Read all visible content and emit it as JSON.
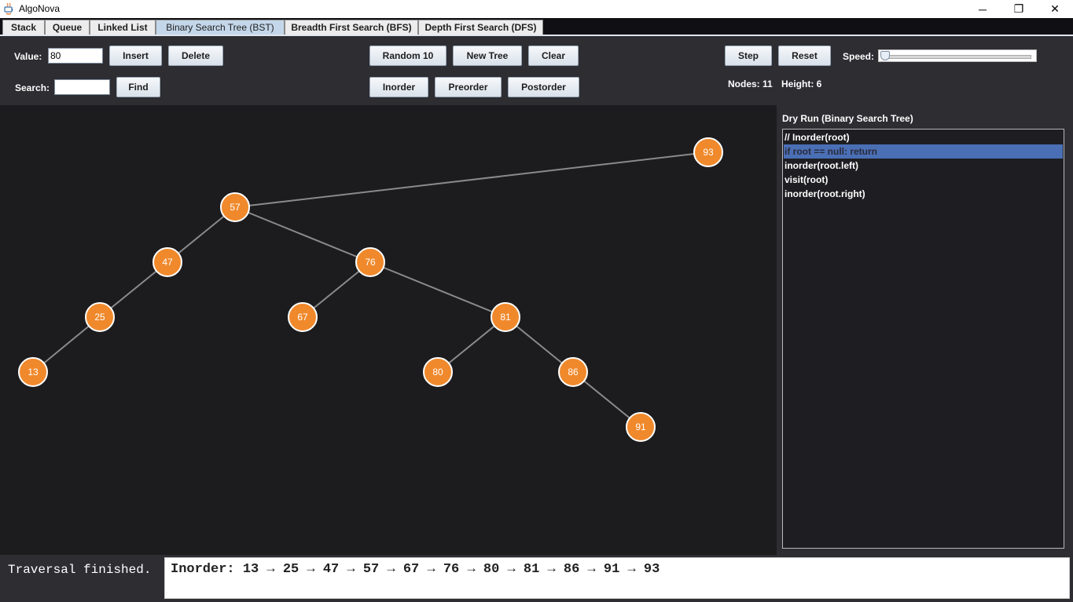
{
  "window": {
    "title": "AlgoNova",
    "minimize": "─",
    "maximize": "❐",
    "close": "✕"
  },
  "tabs": [
    {
      "label": "Stack",
      "active": false
    },
    {
      "label": "Queue",
      "active": false
    },
    {
      "label": "Linked List",
      "active": false
    },
    {
      "label": "Binary Search Tree (BST)",
      "active": true
    },
    {
      "label": "Breadth First Search (BFS)",
      "active": false
    },
    {
      "label": "Depth First Search (DFS)",
      "active": false
    }
  ],
  "controls": {
    "value_label": "Value:",
    "value_input": "80",
    "insert": "Insert",
    "delete": "Delete",
    "search_label": "Search:",
    "search_input": "",
    "find": "Find",
    "random10": "Random 10",
    "new_tree": "New Tree",
    "clear": "Clear",
    "inorder": "Inorder",
    "preorder": "Preorder",
    "postorder": "Postorder",
    "step": "Step",
    "reset": "Reset",
    "speed_label": "Speed:",
    "speed_fraction": 0.0,
    "nodes_text": "Nodes: 11",
    "height_text": "Height: 6"
  },
  "tree": {
    "node_color": "#f0892c",
    "edge_color": "#8a8a8a",
    "nodes": [
      {
        "id": "n93",
        "value": "93"
      },
      {
        "id": "n57",
        "value": "57"
      },
      {
        "id": "n47",
        "value": "47"
      },
      {
        "id": "n76",
        "value": "76"
      },
      {
        "id": "n25",
        "value": "25"
      },
      {
        "id": "n67",
        "value": "67"
      },
      {
        "id": "n81",
        "value": "81"
      },
      {
        "id": "n13",
        "value": "13"
      },
      {
        "id": "n80",
        "value": "80"
      },
      {
        "id": "n86",
        "value": "86"
      },
      {
        "id": "n91",
        "value": "91"
      }
    ],
    "edges": [
      [
        "n93",
        "n57"
      ],
      [
        "n57",
        "n47"
      ],
      [
        "n57",
        "n76"
      ],
      [
        "n47",
        "n25"
      ],
      [
        "n25",
        "n13"
      ],
      [
        "n76",
        "n67"
      ],
      [
        "n76",
        "n81"
      ],
      [
        "n81",
        "n80"
      ],
      [
        "n81",
        "n86"
      ],
      [
        "n86",
        "n91"
      ]
    ]
  },
  "dry_run": {
    "title": "Dry Run (Binary Search Tree)",
    "highlight_color": "#4a6fb5",
    "lines": [
      {
        "text": "// Inorder(root)",
        "highlighted": false
      },
      {
        "text": "if root == null: return",
        "highlighted": true
      },
      {
        "text": "inorder(root.left)",
        "highlighted": false
      },
      {
        "text": "visit(root)",
        "highlighted": false
      },
      {
        "text": "inorder(root.right)",
        "highlighted": false
      }
    ]
  },
  "status": {
    "message": "Traversal finished.",
    "output": "Inorder: 13 → 25 → 47 → 57 → 67 → 76 → 80 → 81 → 86 → 91 → 93"
  }
}
